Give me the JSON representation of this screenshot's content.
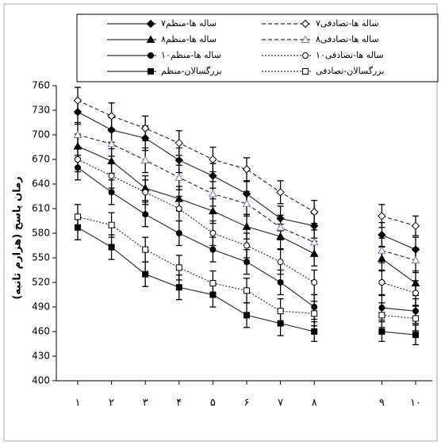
{
  "chart_data": {
    "type": "line",
    "y_label": "زمان پاسخ (هزارم ثانیه)",
    "categories": [
      "۱",
      "۲",
      "۳",
      "۴",
      "۵",
      "۶",
      "۷",
      "۸",
      null,
      "۹",
      "۱۰"
    ],
    "ylim": [
      400,
      760
    ],
    "yticks": [
      400,
      430,
      460,
      490,
      520,
      550,
      580,
      610,
      640,
      670,
      700,
      730,
      760
    ],
    "series": [
      {
        "name": "۷ساله ها-منظم",
        "color": "#000000",
        "dash": "solid",
        "marker": "diamond",
        "filled": true,
        "values": [
          728,
          706,
          696,
          669,
          650,
          628,
          598,
          589,
          null,
          578,
          560
        ],
        "errors": [
          15,
          15,
          15,
          15,
          15,
          15,
          15,
          15,
          null,
          15,
          15
        ]
      },
      {
        "name": "۷ساله ها-تصادفی",
        "color": "#000000",
        "dash": "dashed",
        "marker": "diamond",
        "filled": false,
        "values": [
          742,
          723,
          708,
          690,
          670,
          658,
          630,
          606,
          null,
          601,
          589
        ],
        "errors": [
          16,
          16,
          15,
          15,
          15,
          14,
          14,
          14,
          null,
          14,
          12
        ]
      },
      {
        "name": "۸ساله ها-منظم",
        "color": "#000000",
        "dash": "solid",
        "marker": "triangle",
        "filled": true,
        "values": [
          686,
          668,
          635,
          622,
          607,
          588,
          576,
          555,
          null,
          549,
          519
        ],
        "errors": [
          15,
          15,
          15,
          15,
          15,
          15,
          15,
          15,
          null,
          15,
          15
        ]
      },
      {
        "name": "۸ساله ها-تصادفی",
        "color": "#7f7aa8",
        "dash": "dashed",
        "marker": "triangle",
        "filled": false,
        "values": [
          700,
          689,
          669,
          648,
          628,
          616,
          587,
          569,
          null,
          559,
          547
        ],
        "errors": [
          15,
          15,
          15,
          15,
          15,
          15,
          15,
          15,
          null,
          15,
          15
        ]
      },
      {
        "name": "۱۰ساله ها-منظم",
        "color": "#000000",
        "dash": "solid",
        "marker": "circle",
        "filled": true,
        "values": [
          660,
          630,
          603,
          580,
          560,
          545,
          520,
          490,
          null,
          489,
          485
        ],
        "errors": [
          15,
          15,
          15,
          15,
          15,
          15,
          15,
          15,
          null,
          15,
          15
        ]
      },
      {
        "name": "۱۰ساله ها-تصادفی",
        "color": "#000000",
        "dash": "dotted",
        "marker": "circle",
        "filled": false,
        "values": [
          670,
          650,
          630,
          610,
          580,
          565,
          545,
          520,
          null,
          520,
          507
        ],
        "errors": [
          15,
          15,
          15,
          15,
          15,
          15,
          15,
          15,
          null,
          15,
          15
        ]
      },
      {
        "name": "بزرگسالان-منظم",
        "color": "#000000",
        "dash": "solid",
        "marker": "square",
        "filled": true,
        "values": [
          587,
          563,
          530,
          514,
          505,
          480,
          470,
          460,
          null,
          460,
          456
        ],
        "errors": [
          15,
          15,
          15,
          15,
          15,
          15,
          15,
          12,
          null,
          12,
          12
        ]
      },
      {
        "name": "بزرگسالان-تصادفی",
        "color": "#000000",
        "dash": "dotted",
        "marker": "square",
        "filled": false,
        "values": [
          600,
          590,
          560,
          538,
          519,
          510,
          485,
          482,
          null,
          480,
          476
        ],
        "errors": [
          15,
          15,
          15,
          15,
          15,
          15,
          15,
          15,
          null,
          15,
          15
        ]
      }
    ]
  }
}
